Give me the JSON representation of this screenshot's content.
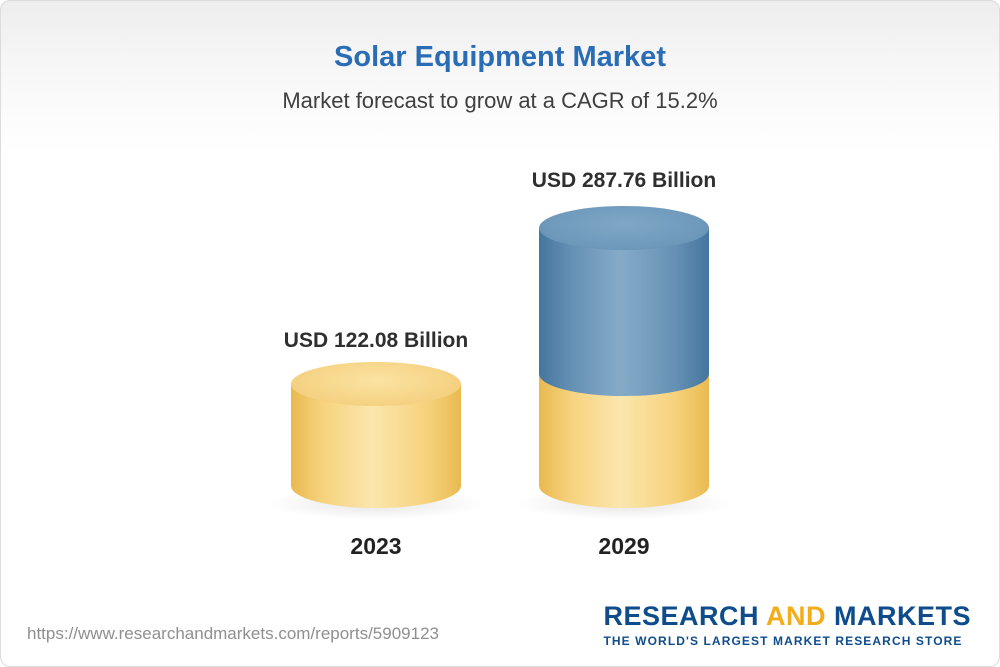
{
  "header": {
    "title": "Solar Equipment Market",
    "subtitle": "Market forecast to grow at a CAGR of 15.2%"
  },
  "chart_data": {
    "type": "bar",
    "title": "Solar Equipment Market",
    "subtitle": "Market forecast to grow at a CAGR of 15.2%",
    "cagr_percent": 15.2,
    "categories": [
      "2023",
      "2029"
    ],
    "values": [
      122.08,
      287.76
    ],
    "unit": "USD Billion",
    "value_labels": [
      "USD 122.08 Billion",
      "USD 287.76 Billion"
    ],
    "legend_position": "none",
    "grid": false,
    "colors": {
      "bar_2023": "#f6d27c",
      "bar_2029_top": "#6691b4",
      "bar_2029_base": "#f6d27c",
      "title_text": "#2a6db5"
    }
  },
  "footer": {
    "url": "https://www.researchandmarkets.com/reports/5909123",
    "logo": {
      "word1": "RESEARCH",
      "word2": "AND",
      "word3": "MARKETS",
      "tagline": "THE WORLD'S LARGEST MARKET RESEARCH STORE"
    }
  }
}
